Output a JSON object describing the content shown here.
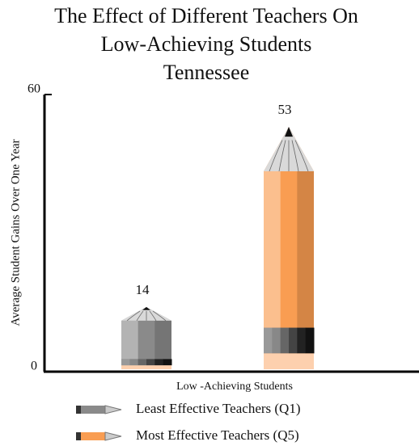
{
  "chart_data": {
    "type": "pencil-bar",
    "title": [
      "The Effect of Different Teachers On",
      "Low-Achieving Students"
    ],
    "subtitle": "Tennessee",
    "y_label": "Average Student  Gains Over One  Year",
    "x_label": "Low -Achieving Students",
    "ylim": [
      0,
      60
    ],
    "yticks": [
      0,
      60
    ],
    "series": [
      {
        "name": "Least Effective Teachers (Q1)",
        "color": "#8a8a8a",
        "values": [
          14
        ]
      },
      {
        "name": "Most Effective Teachers (Q5)",
        "color": "#f99d52",
        "values": [
          53
        ]
      }
    ]
  }
}
